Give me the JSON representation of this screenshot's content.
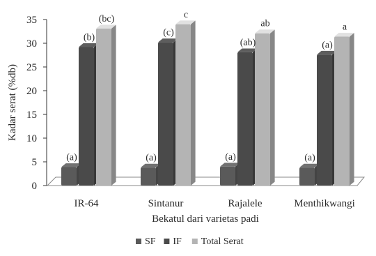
{
  "chart_data": {
    "type": "bar",
    "xlabel": "Bekatul dari varietas padi",
    "ylabel": "Kadar serat (%db)",
    "ylim": [
      0,
      35
    ],
    "yticks": [
      0,
      5,
      10,
      15,
      20,
      25,
      30,
      35
    ],
    "categories": [
      "IR-64",
      "Sintanur",
      "Rajalele",
      "Menthikwangi"
    ],
    "series": [
      {
        "name": "SF",
        "values": [
          3.9,
          3.8,
          4.0,
          3.8
        ],
        "labels": [
          "(a)",
          "(a)",
          "(a)",
          "(a)"
        ],
        "color": "#5a5a5a"
      },
      {
        "name": "IF",
        "values": [
          29.2,
          30.2,
          28.1,
          27.6
        ],
        "labels": [
          "(b)",
          "(c)",
          "(ab)",
          "(a)"
        ],
        "color": "#4a4a4a"
      },
      {
        "name": "Total Serat",
        "values": [
          33.1,
          34.0,
          32.1,
          31.4
        ],
        "labels": [
          "(bc)",
          "c",
          "ab",
          "a"
        ],
        "color": "#b4b4b4"
      }
    ],
    "grid": false,
    "legend_position": "bottom"
  }
}
